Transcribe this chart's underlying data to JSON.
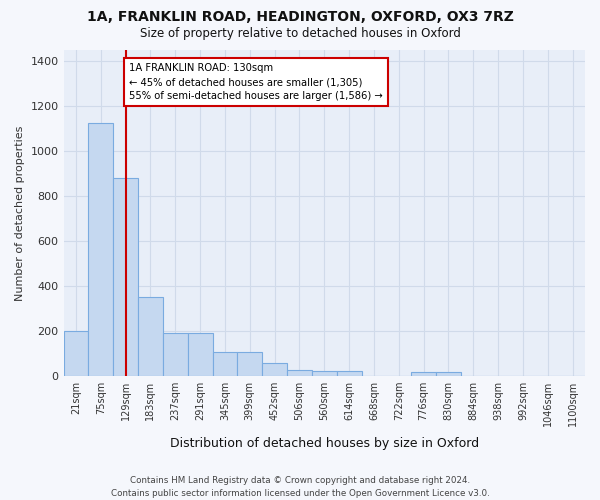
{
  "title1": "1A, FRANKLIN ROAD, HEADINGTON, OXFORD, OX3 7RZ",
  "title2": "Size of property relative to detached houses in Oxford",
  "xlabel": "Distribution of detached houses by size in Oxford",
  "ylabel": "Number of detached properties",
  "categories": [
    "21sqm",
    "75sqm",
    "129sqm",
    "183sqm",
    "237sqm",
    "291sqm",
    "345sqm",
    "399sqm",
    "452sqm",
    "506sqm",
    "560sqm",
    "614sqm",
    "668sqm",
    "722sqm",
    "776sqm",
    "830sqm",
    "884sqm",
    "938sqm",
    "992sqm",
    "1046sqm",
    "1100sqm"
  ],
  "values": [
    200,
    1125,
    880,
    350,
    190,
    190,
    105,
    105,
    55,
    25,
    20,
    20,
    0,
    0,
    15,
    15,
    0,
    0,
    0,
    0,
    0
  ],
  "bar_color": "#c5d8f0",
  "bar_edge_color": "#7aabe0",
  "grid_color": "#d0daea",
  "background_color": "#e8eef8",
  "fig_color": "#f5f7fc",
  "vline_x": 2,
  "vline_color": "#cc0000",
  "annotation_text": "1A FRANKLIN ROAD: 130sqm\n← 45% of detached houses are smaller (1,305)\n55% of semi-detached houses are larger (1,586) →",
  "annotation_box_color": "#ffffff",
  "annotation_box_edge": "#cc0000",
  "ylim": [
    0,
    1450
  ],
  "yticks": [
    0,
    200,
    400,
    600,
    800,
    1000,
    1200,
    1400
  ],
  "footer": "Contains HM Land Registry data © Crown copyright and database right 2024.\nContains public sector information licensed under the Open Government Licence v3.0."
}
